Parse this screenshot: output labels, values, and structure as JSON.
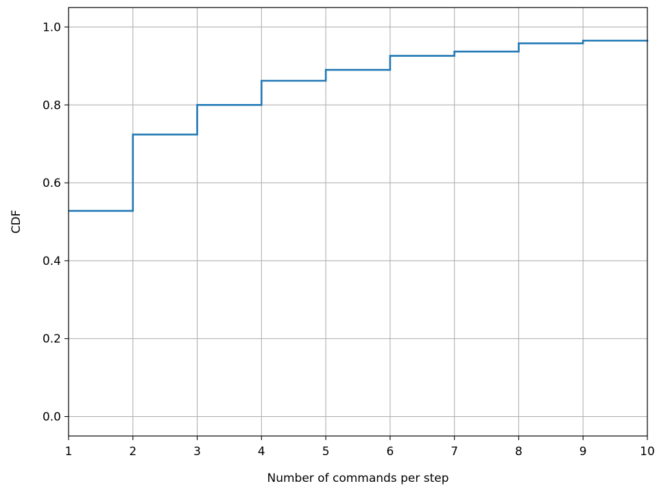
{
  "chart_data": {
    "type": "line",
    "step": "post",
    "title": "",
    "xlabel": "Number of commands per step",
    "ylabel": "CDF",
    "xlim": [
      1,
      10
    ],
    "ylim": [
      -0.05,
      1.05
    ],
    "xticks": [
      1,
      2,
      3,
      4,
      5,
      6,
      7,
      8,
      9,
      10
    ],
    "yticks": [
      0.0,
      0.2,
      0.4,
      0.6,
      0.8,
      1.0
    ],
    "xtick_labels": [
      "1",
      "2",
      "3",
      "4",
      "5",
      "6",
      "7",
      "8",
      "9",
      "10"
    ],
    "ytick_labels": [
      "0.0",
      "0.2",
      "0.4",
      "0.6",
      "0.8",
      "1.0"
    ],
    "grid": true,
    "series": [
      {
        "color": "#1f77b4",
        "x": [
          1,
          2,
          3,
          4,
          5,
          6,
          7,
          8,
          9,
          10
        ],
        "y": [
          0.528,
          0.724,
          0.8,
          0.862,
          0.89,
          0.926,
          0.937,
          0.958,
          0.965,
          0.967
        ]
      }
    ]
  }
}
